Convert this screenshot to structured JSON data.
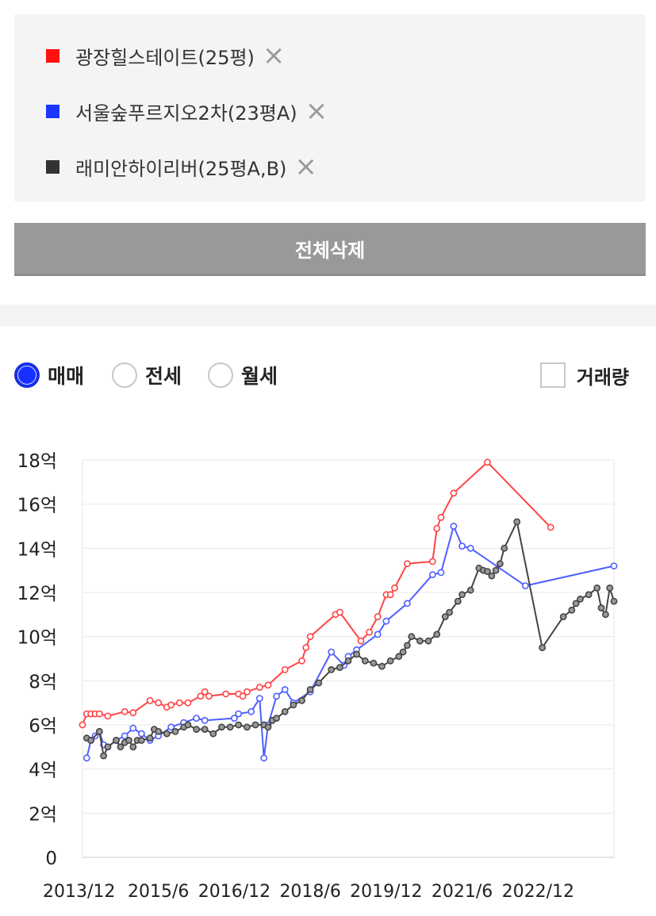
{
  "compare_list": [
    {
      "name": "광장힐스테이트(25평)",
      "color": "#ff1111"
    },
    {
      "name": "서울숲푸르지오2차(23평A)",
      "color": "#1a36ff"
    },
    {
      "name": "래미안하이리버(25평A,B)",
      "color": "#333333"
    }
  ],
  "remove_icon": "close-x-icon",
  "clear_all_label": "전체삭제",
  "filters": {
    "trade_types": [
      {
        "label": "매매",
        "selected": true
      },
      {
        "label": "전세",
        "selected": false
      },
      {
        "label": "월세",
        "selected": false
      }
    ],
    "volume_label": "거래량",
    "volume_checked": false
  },
  "chart_data": {
    "type": "line",
    "title": "",
    "xlabel": "",
    "ylabel": "",
    "x_tick_labels": [
      "2013/12",
      "2015/6",
      "2016/12",
      "2018/6",
      "2019/12",
      "2021/6",
      "2022/12"
    ],
    "y_tick_labels": [
      "0",
      "2억",
      "4억",
      "6억",
      "8억",
      "10억",
      "12억",
      "14억",
      "16억",
      "18억"
    ],
    "xlim": [
      "2013-12",
      "2024-06"
    ],
    "ylim": [
      0,
      18
    ],
    "grid": true,
    "y_unit": "억",
    "series": [
      {
        "name": "광장힐스테이트(25평)",
        "color": "#ff4444",
        "points": [
          [
            "2013-12",
            6.0
          ],
          [
            "2014-01",
            6.5
          ],
          [
            "2014-02",
            6.5
          ],
          [
            "2014-03",
            6.5
          ],
          [
            "2014-04",
            6.5
          ],
          [
            "2014-06",
            6.4
          ],
          [
            "2014-10",
            6.6
          ],
          [
            "2014-12",
            6.55
          ],
          [
            "2015-04",
            7.1
          ],
          [
            "2015-06",
            7.0
          ],
          [
            "2015-08",
            6.8
          ],
          [
            "2015-09",
            6.9
          ],
          [
            "2015-11",
            7.0
          ],
          [
            "2016-01",
            7.0
          ],
          [
            "2016-04",
            7.3
          ],
          [
            "2016-05",
            7.5
          ],
          [
            "2016-06",
            7.3
          ],
          [
            "2016-10",
            7.4
          ],
          [
            "2017-01",
            7.4
          ],
          [
            "2017-02",
            7.3
          ],
          [
            "2017-03",
            7.5
          ],
          [
            "2017-06",
            7.7
          ],
          [
            "2017-08",
            7.8
          ],
          [
            "2017-12",
            8.5
          ],
          [
            "2018-04",
            8.9
          ],
          [
            "2018-05",
            9.5
          ],
          [
            "2018-06",
            10.0
          ],
          [
            "2018-12",
            11.0
          ],
          [
            "2019-01",
            11.1
          ],
          [
            "2019-06",
            9.8
          ],
          [
            "2019-08",
            10.2
          ],
          [
            "2019-10",
            10.9
          ],
          [
            "2019-12",
            11.9
          ],
          [
            "2020-01",
            11.9
          ],
          [
            "2020-02",
            12.2
          ],
          [
            "2020-05",
            13.3
          ],
          [
            "2020-11",
            13.4
          ],
          [
            "2020-12",
            14.9
          ],
          [
            "2021-01",
            15.4
          ],
          [
            "2021-04",
            16.5
          ],
          [
            "2021-12",
            17.9
          ],
          [
            "2023-03",
            14.95
          ]
        ]
      },
      {
        "name": "서울숲푸르지오2차(23평A)",
        "color": "#4d5fff",
        "points": [
          [
            "2014-01",
            4.5
          ],
          [
            "2014-02",
            5.3
          ],
          [
            "2014-03",
            5.5
          ],
          [
            "2014-04",
            5.7
          ],
          [
            "2014-05",
            5.1
          ],
          [
            "2014-06",
            5.0
          ],
          [
            "2014-08",
            5.3
          ],
          [
            "2014-10",
            5.5
          ],
          [
            "2014-12",
            5.85
          ],
          [
            "2015-02",
            5.6
          ],
          [
            "2015-04",
            5.3
          ],
          [
            "2015-06",
            5.5
          ],
          [
            "2015-09",
            5.9
          ],
          [
            "2015-12",
            6.1
          ],
          [
            "2016-03",
            6.3
          ],
          [
            "2016-05",
            6.2
          ],
          [
            "2016-12",
            6.3
          ],
          [
            "2017-01",
            6.5
          ],
          [
            "2017-04",
            6.6
          ],
          [
            "2017-06",
            7.2
          ],
          [
            "2017-07",
            4.5
          ],
          [
            "2017-08",
            6.0
          ],
          [
            "2017-10",
            7.3
          ],
          [
            "2017-12",
            7.6
          ],
          [
            "2018-02",
            7.0
          ],
          [
            "2018-06",
            7.5
          ],
          [
            "2018-11",
            9.3
          ],
          [
            "2019-02",
            8.7
          ],
          [
            "2019-03",
            9.1
          ],
          [
            "2019-05",
            9.4
          ],
          [
            "2019-10",
            10.1
          ],
          [
            "2019-12",
            10.7
          ],
          [
            "2020-05",
            11.5
          ],
          [
            "2020-11",
            12.8
          ],
          [
            "2021-01",
            12.9
          ],
          [
            "2021-04",
            15.0
          ],
          [
            "2021-06",
            14.1
          ],
          [
            "2021-08",
            14.0
          ],
          [
            "2022-09",
            12.3
          ],
          [
            "2024-06",
            13.2
          ]
        ]
      },
      {
        "name": "래미안하이리버(25평A,B)",
        "color": "#444444",
        "points": [
          [
            "2014-01",
            5.4
          ],
          [
            "2014-02",
            5.3
          ],
          [
            "2014-04",
            5.7
          ],
          [
            "2014-05",
            4.6
          ],
          [
            "2014-06",
            5.0
          ],
          [
            "2014-08",
            5.3
          ],
          [
            "2014-09",
            5.0
          ],
          [
            "2014-10",
            5.2
          ],
          [
            "2014-11",
            5.3
          ],
          [
            "2014-12",
            5.0
          ],
          [
            "2015-01",
            5.3
          ],
          [
            "2015-02",
            5.3
          ],
          [
            "2015-04",
            5.4
          ],
          [
            "2015-05",
            5.8
          ],
          [
            "2015-06",
            5.7
          ],
          [
            "2015-08",
            5.6
          ],
          [
            "2015-10",
            5.7
          ],
          [
            "2015-12",
            5.9
          ],
          [
            "2016-01",
            6.0
          ],
          [
            "2016-03",
            5.8
          ],
          [
            "2016-05",
            5.8
          ],
          [
            "2016-07",
            5.6
          ],
          [
            "2016-09",
            5.9
          ],
          [
            "2016-11",
            5.9
          ],
          [
            "2017-01",
            6.0
          ],
          [
            "2017-03",
            5.9
          ],
          [
            "2017-05",
            6.0
          ],
          [
            "2017-07",
            6.0
          ],
          [
            "2017-08",
            5.9
          ],
          [
            "2017-09",
            6.2
          ],
          [
            "2017-10",
            6.3
          ],
          [
            "2017-12",
            6.6
          ],
          [
            "2018-02",
            6.9
          ],
          [
            "2018-04",
            7.1
          ],
          [
            "2018-06",
            7.6
          ],
          [
            "2018-08",
            7.9
          ],
          [
            "2018-11",
            8.5
          ],
          [
            "2019-01",
            8.6
          ],
          [
            "2019-03",
            8.9
          ],
          [
            "2019-05",
            9.2
          ],
          [
            "2019-07",
            8.9
          ],
          [
            "2019-09",
            8.8
          ],
          [
            "2019-11",
            8.65
          ],
          [
            "2020-01",
            8.9
          ],
          [
            "2020-03",
            9.1
          ],
          [
            "2020-04",
            9.3
          ],
          [
            "2020-05",
            9.6
          ],
          [
            "2020-06",
            10.0
          ],
          [
            "2020-08",
            9.8
          ],
          [
            "2020-10",
            9.8
          ],
          [
            "2020-12",
            10.1
          ],
          [
            "2021-02",
            10.9
          ],
          [
            "2021-03",
            11.1
          ],
          [
            "2021-05",
            11.6
          ],
          [
            "2021-06",
            11.9
          ],
          [
            "2021-08",
            12.1
          ],
          [
            "2021-10",
            13.1
          ],
          [
            "2021-11",
            13.0
          ],
          [
            "2021-12",
            12.95
          ],
          [
            "2022-01",
            12.75
          ],
          [
            "2022-02",
            13.0
          ],
          [
            "2022-03",
            13.3
          ],
          [
            "2022-04",
            14.0
          ],
          [
            "2022-07",
            15.2
          ],
          [
            "2023-01",
            9.5
          ],
          [
            "2023-06",
            10.9
          ],
          [
            "2023-08",
            11.2
          ],
          [
            "2023-09",
            11.5
          ],
          [
            "2023-10",
            11.7
          ],
          [
            "2023-12",
            11.9
          ],
          [
            "2024-02",
            12.2
          ],
          [
            "2024-03",
            11.3
          ],
          [
            "2024-04",
            11.0
          ],
          [
            "2024-05",
            12.2
          ],
          [
            "2024-06",
            11.6
          ]
        ]
      }
    ]
  }
}
